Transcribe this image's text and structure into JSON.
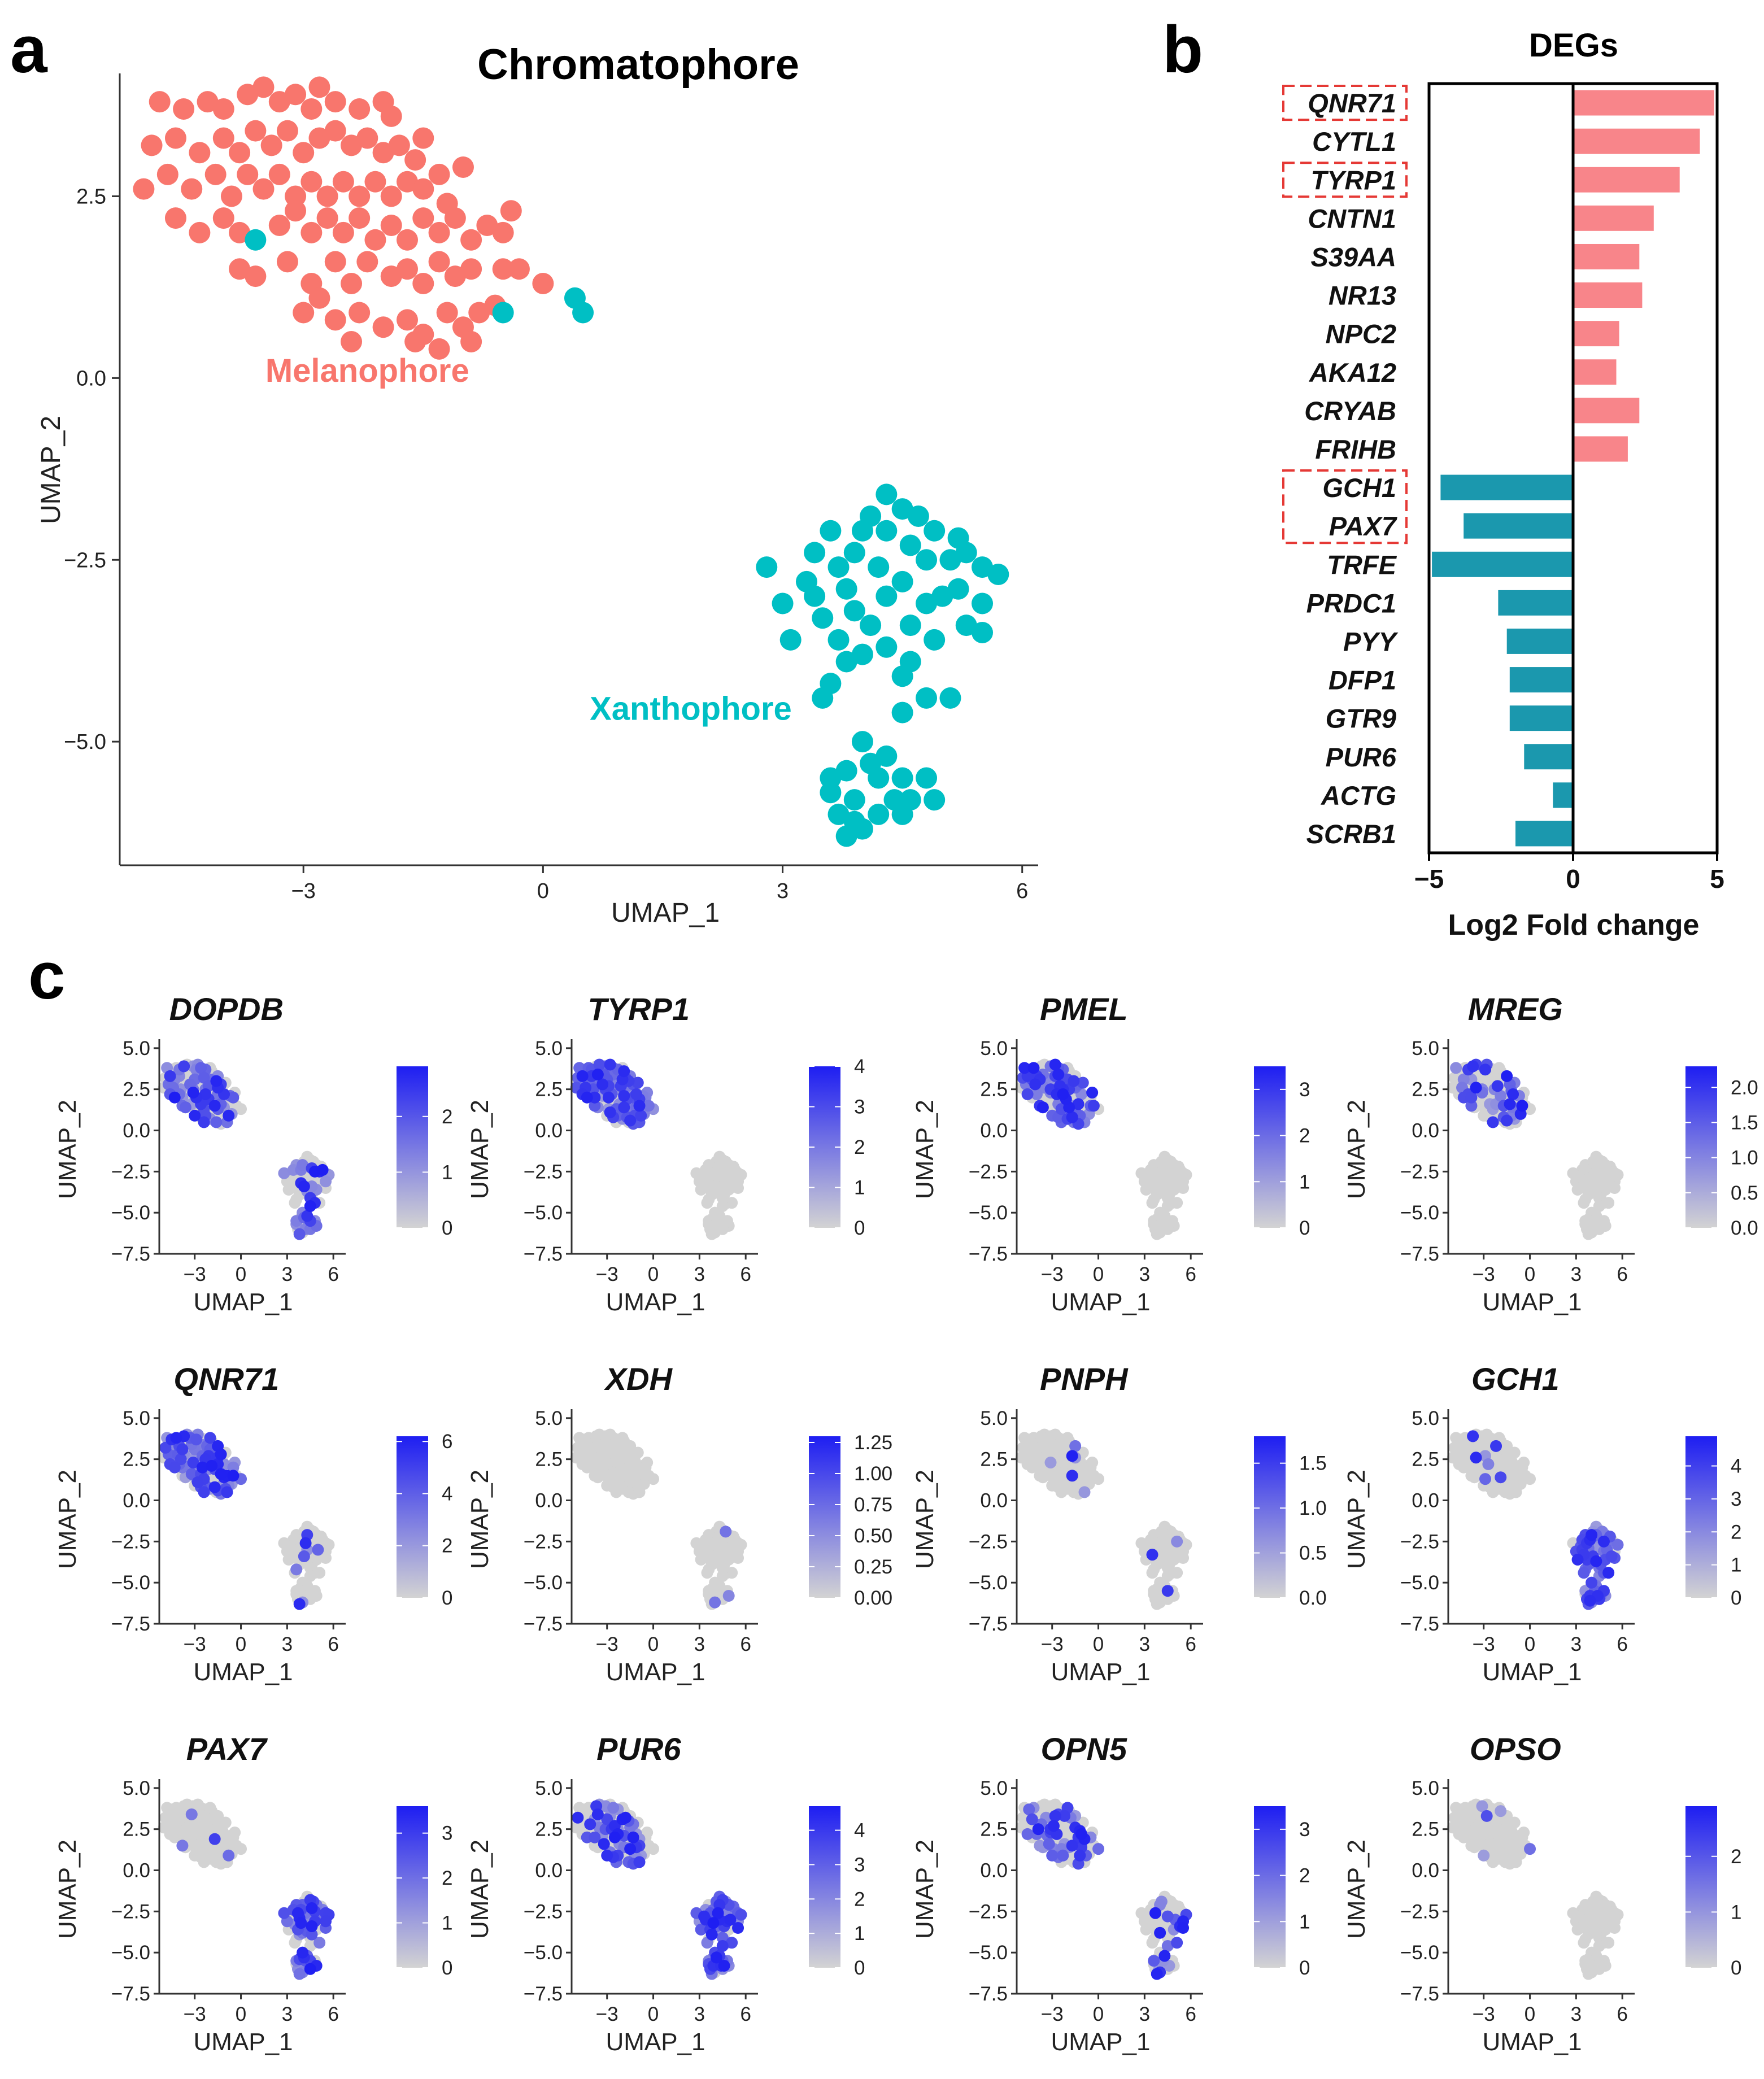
{
  "panel_labels": {
    "a": "a",
    "b": "b",
    "c": "c"
  },
  "chart_data": [
    {
      "type": "scatter",
      "panel": "a",
      "title": "Chromatophore",
      "xlabel": "UMAP_1",
      "ylabel": "UMAP_2",
      "xlim": [
        -5.3,
        6.2
      ],
      "ylim": [
        -6.7,
        4.5
      ],
      "xticks": [
        -3,
        0,
        3,
        6
      ],
      "yticks": [
        2.5,
        0.0,
        -2.5,
        -5.0
      ],
      "xtick_labels": [
        "−3",
        "0",
        "3",
        "6"
      ],
      "ytick_labels": [
        "2.5",
        "0.0",
        "−2.5",
        "−5.0"
      ],
      "grid": false,
      "annotations": [
        {
          "text": "Melanophore",
          "x": -2.2,
          "y": -0.05,
          "color": "#F8766D"
        },
        {
          "text": "Xanthophore",
          "x": 1.85,
          "y": -4.7,
          "color": "#00BFC4"
        }
      ],
      "series": [
        {
          "name": "Melanophore",
          "color": "#F8766D",
          "points": [
            [
              -4.8,
              3.8
            ],
            [
              -4.5,
              3.7
            ],
            [
              -4.2,
              3.8
            ],
            [
              -4.0,
              3.7
            ],
            [
              -3.7,
              3.9
            ],
            [
              -3.5,
              4.0
            ],
            [
              -3.3,
              3.8
            ],
            [
              -3.1,
              3.9
            ],
            [
              -2.9,
              3.7
            ],
            [
              -2.6,
              3.8
            ],
            [
              -2.3,
              3.7
            ],
            [
              -2.0,
              3.8
            ],
            [
              -1.9,
              3.6
            ],
            [
              -2.8,
              4.0
            ],
            [
              -4.9,
              3.2
            ],
            [
              -4.6,
              3.3
            ],
            [
              -4.3,
              3.1
            ],
            [
              -4.0,
              3.3
            ],
            [
              -3.8,
              3.1
            ],
            [
              -3.6,
              3.4
            ],
            [
              -3.4,
              3.2
            ],
            [
              -3.2,
              3.4
            ],
            [
              -3.0,
              3.1
            ],
            [
              -2.8,
              3.3
            ],
            [
              -2.6,
              3.4
            ],
            [
              -2.4,
              3.2
            ],
            [
              -2.2,
              3.3
            ],
            [
              -2.0,
              3.1
            ],
            [
              -1.8,
              3.2
            ],
            [
              -1.6,
              3.0
            ],
            [
              -1.5,
              3.3
            ],
            [
              -5.0,
              2.6
            ],
            [
              -4.7,
              2.8
            ],
            [
              -4.4,
              2.6
            ],
            [
              -4.1,
              2.8
            ],
            [
              -3.9,
              2.5
            ],
            [
              -3.7,
              2.8
            ],
            [
              -3.5,
              2.6
            ],
            [
              -3.3,
              2.8
            ],
            [
              -3.1,
              2.5
            ],
            [
              -2.9,
              2.7
            ],
            [
              -2.7,
              2.5
            ],
            [
              -2.5,
              2.7
            ],
            [
              -2.3,
              2.5
            ],
            [
              -2.1,
              2.7
            ],
            [
              -1.9,
              2.5
            ],
            [
              -1.7,
              2.7
            ],
            [
              -1.5,
              2.6
            ],
            [
              -1.3,
              2.8
            ],
            [
              -1.2,
              2.4
            ],
            [
              -1.0,
              2.9
            ],
            [
              -4.6,
              2.2
            ],
            [
              -4.3,
              2.0
            ],
            [
              -4.0,
              2.2
            ],
            [
              -3.8,
              2.0
            ],
            [
              -3.3,
              2.1
            ],
            [
              -3.1,
              2.3
            ],
            [
              -2.9,
              2.0
            ],
            [
              -2.7,
              2.2
            ],
            [
              -2.5,
              2.0
            ],
            [
              -2.3,
              2.2
            ],
            [
              -2.1,
              1.9
            ],
            [
              -1.9,
              2.1
            ],
            [
              -1.7,
              1.9
            ],
            [
              -1.5,
              2.2
            ],
            [
              -1.3,
              2.0
            ],
            [
              -1.1,
              2.2
            ],
            [
              -0.9,
              1.9
            ],
            [
              -0.7,
              2.1
            ],
            [
              -0.5,
              2.0
            ],
            [
              -0.4,
              2.3
            ],
            [
              -3.8,
              1.5
            ],
            [
              -3.6,
              1.4
            ],
            [
              -3.2,
              1.6
            ],
            [
              -2.9,
              1.3
            ],
            [
              -2.6,
              1.6
            ],
            [
              -2.4,
              1.3
            ],
            [
              -2.2,
              1.6
            ],
            [
              -1.9,
              1.4
            ],
            [
              -1.7,
              1.5
            ],
            [
              -1.5,
              1.3
            ],
            [
              -1.3,
              1.6
            ],
            [
              -1.1,
              1.4
            ],
            [
              -0.9,
              1.5
            ],
            [
              -0.5,
              1.5
            ],
            [
              -0.3,
              1.5
            ],
            [
              0.0,
              1.3
            ],
            [
              -0.6,
              1.0
            ],
            [
              -3.0,
              0.9
            ],
            [
              -2.6,
              0.8
            ],
            [
              -2.3,
              0.9
            ],
            [
              -2.0,
              0.7
            ],
            [
              -1.7,
              0.8
            ],
            [
              -1.5,
              0.6
            ],
            [
              -1.2,
              0.9
            ],
            [
              -1.0,
              0.7
            ],
            [
              -0.8,
              0.9
            ],
            [
              -2.8,
              1.1
            ],
            [
              -2.4,
              0.5
            ],
            [
              -1.6,
              0.5
            ],
            [
              -1.3,
              0.4
            ],
            [
              -0.9,
              0.5
            ]
          ]
        },
        {
          "name": "Xanthophore",
          "color": "#00BFC4",
          "points": [
            [
              -3.6,
              1.9
            ],
            [
              -0.5,
              0.9
            ],
            [
              0.4,
              1.1
            ],
            [
              0.5,
              0.9
            ],
            [
              4.3,
              -1.6
            ],
            [
              4.5,
              -1.8
            ],
            [
              4.1,
              -1.9
            ],
            [
              4.7,
              -1.9
            ],
            [
              3.6,
              -2.1
            ],
            [
              4.0,
              -2.1
            ],
            [
              4.3,
              -2.1
            ],
            [
              4.9,
              -2.1
            ],
            [
              5.2,
              -2.2
            ],
            [
              3.4,
              -2.4
            ],
            [
              3.9,
              -2.4
            ],
            [
              4.6,
              -2.3
            ],
            [
              5.3,
              -2.4
            ],
            [
              2.8,
              -2.6
            ],
            [
              3.7,
              -2.6
            ],
            [
              4.2,
              -2.6
            ],
            [
              4.8,
              -2.5
            ],
            [
              5.1,
              -2.5
            ],
            [
              5.5,
              -2.6
            ],
            [
              5.7,
              -2.7
            ],
            [
              3.3,
              -2.8
            ],
            [
              3.8,
              -2.9
            ],
            [
              4.5,
              -2.8
            ],
            [
              5.2,
              -2.9
            ],
            [
              3.0,
              -3.1
            ],
            [
              3.4,
              -3.0
            ],
            [
              3.9,
              -3.2
            ],
            [
              4.3,
              -3.0
            ],
            [
              4.8,
              -3.1
            ],
            [
              5.0,
              -3.0
            ],
            [
              5.5,
              -3.1
            ],
            [
              3.5,
              -3.3
            ],
            [
              4.1,
              -3.4
            ],
            [
              4.6,
              -3.4
            ],
            [
              5.3,
              -3.4
            ],
            [
              3.1,
              -3.6
            ],
            [
              3.7,
              -3.6
            ],
            [
              4.3,
              -3.7
            ],
            [
              4.9,
              -3.6
            ],
            [
              5.5,
              -3.5
            ],
            [
              3.8,
              -3.9
            ],
            [
              4.0,
              -3.8
            ],
            [
              4.6,
              -3.9
            ],
            [
              4.5,
              -4.1
            ],
            [
              3.6,
              -4.2
            ],
            [
              3.5,
              -4.4
            ],
            [
              4.8,
              -4.4
            ],
            [
              5.1,
              -4.4
            ],
            [
              4.5,
              -4.6
            ],
            [
              4.0,
              -5.0
            ],
            [
              4.1,
              -5.3
            ],
            [
              4.3,
              -5.2
            ],
            [
              3.8,
              -5.4
            ],
            [
              3.6,
              -5.5
            ],
            [
              4.2,
              -5.5
            ],
            [
              4.5,
              -5.5
            ],
            [
              4.8,
              -5.5
            ],
            [
              3.6,
              -5.7
            ],
            [
              3.9,
              -5.8
            ],
            [
              4.4,
              -5.8
            ],
            [
              4.6,
              -5.8
            ],
            [
              4.9,
              -5.8
            ],
            [
              3.7,
              -6.0
            ],
            [
              4.2,
              -6.0
            ],
            [
              4.5,
              -6.0
            ],
            [
              3.9,
              -6.1
            ],
            [
              4.0,
              -6.2
            ],
            [
              3.8,
              -6.3
            ]
          ]
        }
      ]
    },
    {
      "type": "bar",
      "orientation": "horizontal",
      "panel": "b",
      "title": "DEGs",
      "xlabel": "Log2 Fold change",
      "xlim": [
        -5,
        5
      ],
      "xticks": [
        -5,
        0,
        5
      ],
      "xtick_labels": [
        "−5",
        "0",
        "5"
      ],
      "categories": [
        "QNR71",
        "CYTL1",
        "TYRP1",
        "CNTN1",
        "S39AA",
        "NR13",
        "NPC2",
        "AKA12",
        "CRYAB",
        "FRIHB",
        "GCH1",
        "PAX7",
        "TRFE",
        "PRDC1",
        "PYY",
        "DFP1",
        "GTR9",
        "PUR6",
        "ACTG",
        "SCRB1"
      ],
      "values": [
        4.9,
        4.4,
        3.7,
        2.8,
        2.3,
        2.4,
        1.6,
        1.5,
        2.3,
        1.9,
        -4.6,
        -3.8,
        -4.9,
        -2.6,
        -2.3,
        -2.2,
        -2.2,
        -1.7,
        -0.7,
        -2.0
      ],
      "highlighted": [
        "QNR71",
        "TYRP1",
        "GCH1",
        "PAX7"
      ],
      "positive_color": "#F8858A",
      "negative_color": "#1B98AE",
      "highlight_box_color": "#E53935"
    },
    {
      "type": "scatter",
      "panel": "c",
      "subtype": "feature_plots",
      "xlabel": "UMAP_1",
      "ylabel": "UMAP_2",
      "xlim": [
        -5.3,
        6.8
      ],
      "ylim": [
        -7.5,
        5.2
      ],
      "xticks": [
        -3,
        0,
        3,
        6
      ],
      "xtick_labels": [
        "−3",
        "0",
        "3",
        "6"
      ],
      "yticks": [
        5.0,
        2.5,
        0.0,
        -2.5,
        -5.0,
        -7.5
      ],
      "ytick_labels": [
        "5.0",
        "2.5",
        "0.0",
        "−2.5",
        "−5.0",
        "−7.5"
      ],
      "color_low": "#D3D3D3",
      "color_high": "#1E1EF2",
      "panels": [
        {
          "gene": "DOPDB",
          "max": 2.9,
          "ticks": [
            0,
            1,
            2
          ],
          "tick_labels": [
            "0",
            "1",
            "2"
          ],
          "mel": 0.55,
          "xan": 0.45
        },
        {
          "gene": "TYRP1",
          "max": 4.0,
          "ticks": [
            0,
            1,
            2,
            3,
            4
          ],
          "tick_labels": [
            "0",
            "1",
            "2",
            "3",
            "4"
          ],
          "mel": 0.85,
          "xan": 0.0
        },
        {
          "gene": "PMEL",
          "max": 3.5,
          "ticks": [
            0,
            1,
            2,
            3
          ],
          "tick_labels": [
            "0",
            "1",
            "2",
            "3"
          ],
          "mel": 0.6,
          "xan": 0.0
        },
        {
          "gene": "MREG",
          "max": 2.3,
          "ticks": [
            0.0,
            0.5,
            1.0,
            1.5,
            2.0
          ],
          "tick_labels": [
            "0.0",
            "0.5",
            "1.0",
            "1.5",
            "2.0"
          ],
          "mel": 0.35,
          "xan": 0.0
        },
        {
          "gene": "QNR71",
          "max": 6.2,
          "ticks": [
            0,
            2,
            4,
            6
          ],
          "tick_labels": [
            "0",
            "2",
            "4",
            "6"
          ],
          "mel": 0.8,
          "xan": 0.15
        },
        {
          "gene": "XDH",
          "max": 1.3,
          "ticks": [
            0.0,
            0.25,
            0.5,
            0.75,
            1.0,
            1.25
          ],
          "tick_labels": [
            "0.00",
            "0.25",
            "0.50",
            "0.75",
            "1.00",
            "1.25"
          ],
          "mel": 0.0,
          "xan": 0.05
        },
        {
          "gene": "PNPH",
          "max": 1.8,
          "ticks": [
            0.0,
            0.5,
            1.0,
            1.5
          ],
          "tick_labels": [
            "0.0",
            "0.5",
            "1.0",
            "1.5"
          ],
          "mel": 0.03,
          "xan": 0.06
        },
        {
          "gene": "GCH1",
          "max": 4.9,
          "ticks": [
            0,
            1,
            2,
            3,
            4
          ],
          "tick_labels": [
            "0",
            "1",
            "2",
            "3",
            "4"
          ],
          "mel": 0.05,
          "xan": 0.85
        },
        {
          "gene": "PAX7",
          "max": 3.6,
          "ticks": [
            0,
            1,
            2,
            3
          ],
          "tick_labels": [
            "0",
            "1",
            "2",
            "3"
          ],
          "mel": 0.04,
          "xan": 0.8
        },
        {
          "gene": "PUR6",
          "max": 4.7,
          "ticks": [
            0,
            1,
            2,
            3,
            4
          ],
          "tick_labels": [
            "0",
            "1",
            "2",
            "3",
            "4"
          ],
          "mel": 0.55,
          "xan": 0.75
        },
        {
          "gene": "OPN5",
          "max": 3.5,
          "ticks": [
            0,
            1,
            2,
            3
          ],
          "tick_labels": [
            "0",
            "1",
            "2",
            "3"
          ],
          "mel": 0.5,
          "xan": 0.35
        },
        {
          "gene": "OPSO",
          "max": 2.9,
          "ticks": [
            0,
            1,
            2
          ],
          "tick_labels": [
            "0",
            "1",
            "2"
          ],
          "mel": 0.06,
          "xan": 0.0
        }
      ]
    }
  ]
}
